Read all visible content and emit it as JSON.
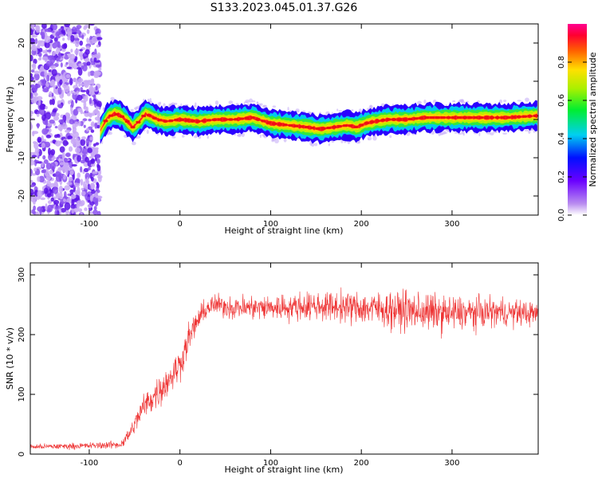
{
  "figure_title": "S133.2023.045.01.37.G26",
  "chart_data": [
    {
      "type": "heatmap",
      "xlabel": "Height of straight line (km)",
      "ylabel": "Frequency (Hz)",
      "xlim": [
        -165,
        395
      ],
      "ylim": [
        -25,
        25
      ],
      "xticks": [
        -100,
        0,
        100,
        200,
        300
      ],
      "yticks": [
        -20,
        -10,
        0,
        10,
        20
      ],
      "colorbar": {
        "label": "Normalized spectral amplitude",
        "range": [
          0.0,
          1.0
        ],
        "ticks": [
          0.0,
          0.2,
          0.4,
          0.6,
          0.8
        ],
        "colormap": "rainbow (purple to red)"
      },
      "noise_region_x": [
        -165,
        -88
      ],
      "ridge": {
        "x": [
          -88,
          -80,
          -72,
          -65,
          -58,
          -52,
          -45,
          -38,
          -33,
          -25,
          -15,
          0,
          20,
          40,
          60,
          80,
          100,
          120,
          140,
          155,
          170,
          185,
          195,
          205,
          215,
          230,
          250,
          270,
          300,
          330,
          360,
          395
        ],
        "frequency_hz": [
          -3.0,
          0.5,
          1.5,
          1.0,
          -0.5,
          -2.0,
          -0.5,
          1.5,
          1.0,
          0.0,
          -0.5,
          0.0,
          -0.5,
          0.0,
          0.0,
          0.5,
          -1.0,
          -1.5,
          -2.0,
          -2.5,
          -2.0,
          -1.5,
          -2.0,
          -1.0,
          -0.5,
          0.0,
          0.0,
          0.5,
          0.5,
          0.5,
          0.5,
          1.0
        ]
      }
    },
    {
      "type": "line",
      "xlabel": "Height of straight line (km)",
      "ylabel": "SNR (10 * v/v)",
      "xlim": [
        -165,
        395
      ],
      "ylim": [
        0,
        320
      ],
      "xticks": [
        -100,
        0,
        100,
        200,
        300
      ],
      "yticks": [
        0,
        100,
        200,
        300
      ],
      "series_color": "#ee3333",
      "envelope": {
        "x": [
          -165,
          -100,
          -65,
          -55,
          -40,
          -20,
          0,
          10,
          20,
          30,
          40,
          60,
          100,
          150,
          200,
          250,
          300,
          350,
          395
        ],
        "mean": [
          12,
          14,
          16,
          35,
          80,
          110,
          150,
          195,
          225,
          245,
          250,
          245,
          245,
          248,
          245,
          240,
          235,
          238,
          235
        ],
        "spread": [
          4,
          5,
          6,
          12,
          20,
          25,
          25,
          22,
          18,
          16,
          16,
          18,
          20,
          22,
          25,
          30,
          28,
          22,
          18
        ]
      }
    }
  ]
}
